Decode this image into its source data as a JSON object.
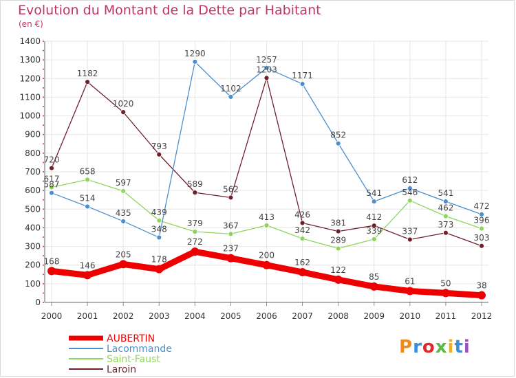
{
  "title": "Evolution du Montant de la Dette par Habitant",
  "subtitle": "(en €)",
  "logo": "Proxiti",
  "colors": {
    "title": "#c0336b",
    "axis": "#333333",
    "grid": "#e6e6e6"
  },
  "chart_data": {
    "type": "line",
    "title": "Evolution du Montant de la Dette par Habitant",
    "subtitle": "(en €)",
    "xlabel": "",
    "ylabel": "",
    "ylim": [
      0,
      1400
    ],
    "yticks": [
      0,
      100,
      200,
      300,
      400,
      500,
      600,
      700,
      800,
      900,
      1000,
      1100,
      1200,
      1300,
      1400
    ],
    "grid": true,
    "legend": "bottom-left",
    "categories": [
      "2000",
      "2001",
      "2002",
      "2003",
      "2004",
      "2005",
      "2006",
      "2007",
      "2008",
      "2009",
      "2010",
      "2011",
      "2012"
    ],
    "series": [
      {
        "name": "Laroin",
        "color": "#6e1f2a",
        "values": [
          720,
          1182,
          1020,
          793,
          589,
          562,
          1203,
          426,
          381,
          412,
          337,
          373,
          303
        ]
      },
      {
        "name": "Saint-Faust",
        "color": "#8ed65a",
        "values": [
          617,
          658,
          597,
          439,
          379,
          367,
          413,
          342,
          289,
          339,
          546,
          462,
          396
        ]
      },
      {
        "name": "Lacommande",
        "color": "#4a8fcf",
        "values": [
          587,
          514,
          435,
          348,
          1290,
          1102,
          1257,
          1171,
          852,
          541,
          612,
          541,
          472
        ]
      },
      {
        "name": "AUBERTIN",
        "color": "#ee0000",
        "values": [
          168,
          146,
          205,
          178,
          272,
          237,
          200,
          162,
          122,
          85,
          61,
          50,
          38
        ]
      }
    ]
  }
}
